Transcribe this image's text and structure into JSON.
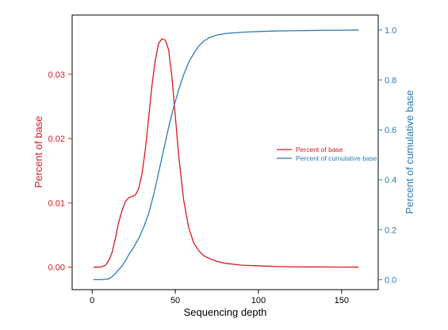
{
  "colors": {
    "left": "#d7191c",
    "right": "#2c7bb6",
    "axis": "#000000",
    "background": "#ffffff"
  },
  "chart_data": {
    "type": "line",
    "title": "",
    "xlabel": "Sequencing depth",
    "ylabel": "Percent of base",
    "ylabel_right": "Percent of cumulative base",
    "xlim": [
      -12,
      172
    ],
    "ylim": [
      -0.0035,
      0.0392
    ],
    "ylim_right": [
      -0.04,
      1.06
    ],
    "x_ticks": [
      0,
      50,
      100,
      150
    ],
    "x_tick_labels": [
      "0",
      "50",
      "100",
      "150"
    ],
    "y_ticks": [
      0.0,
      0.01,
      0.02,
      0.03
    ],
    "y_tick_labels": [
      "0.00",
      "0.01",
      "0.02",
      "0.03"
    ],
    "y_right_ticks": [
      0.0,
      0.2,
      0.4,
      0.6,
      0.8,
      1.0
    ],
    "y_right_tick_labels": [
      "0.0",
      "0.2",
      "0.4",
      "0.6",
      "0.8",
      "1.0"
    ],
    "grid": false,
    "legend": {
      "position": "right",
      "entries": [
        "Percent of base",
        "Percent of cumulative base"
      ]
    },
    "series": [
      {
        "name": "Percent of base",
        "axis": "left",
        "color": "#d7191c",
        "x": [
          1,
          5,
          8,
          10,
          12,
          14,
          16,
          18,
          20,
          22,
          24,
          26,
          28,
          30,
          32,
          34,
          36,
          38,
          40,
          42,
          44,
          46,
          48,
          50,
          52,
          55,
          58,
          61,
          64,
          67,
          70,
          75,
          80,
          90,
          100,
          110,
          120,
          130,
          140,
          150,
          160
        ],
        "y": [
          0.0,
          0.0,
          0.0003,
          0.001,
          0.0023,
          0.0045,
          0.007,
          0.0088,
          0.0102,
          0.0108,
          0.011,
          0.0112,
          0.0122,
          0.0145,
          0.0183,
          0.0232,
          0.0283,
          0.0322,
          0.0348,
          0.0355,
          0.0353,
          0.0338,
          0.0295,
          0.0235,
          0.0175,
          0.0105,
          0.0062,
          0.0038,
          0.0026,
          0.0018,
          0.0014,
          0.0009,
          0.0006,
          0.0003,
          0.0002,
          0.0001,
          5e-05,
          3e-05,
          2e-05,
          1e-05,
          0.0
        ]
      },
      {
        "name": "Percent of cumulative base",
        "axis": "right",
        "color": "#2c7bb6",
        "x": [
          1,
          5,
          10,
          12,
          14,
          16,
          18,
          20,
          22,
          25,
          28,
          31,
          34,
          37,
          40,
          43,
          46,
          49,
          52,
          55,
          58,
          61,
          64,
          67,
          70,
          75,
          80,
          90,
          100,
          110,
          120,
          130,
          140,
          150,
          160
        ],
        "y": [
          0.0,
          0.0,
          0.003,
          0.012,
          0.025,
          0.04,
          0.055,
          0.075,
          0.1,
          0.13,
          0.165,
          0.21,
          0.265,
          0.34,
          0.43,
          0.52,
          0.61,
          0.69,
          0.76,
          0.82,
          0.87,
          0.905,
          0.935,
          0.955,
          0.968,
          0.98,
          0.986,
          0.991,
          0.994,
          0.996,
          0.997,
          0.998,
          0.999,
          0.999,
          1.0
        ]
      }
    ]
  }
}
